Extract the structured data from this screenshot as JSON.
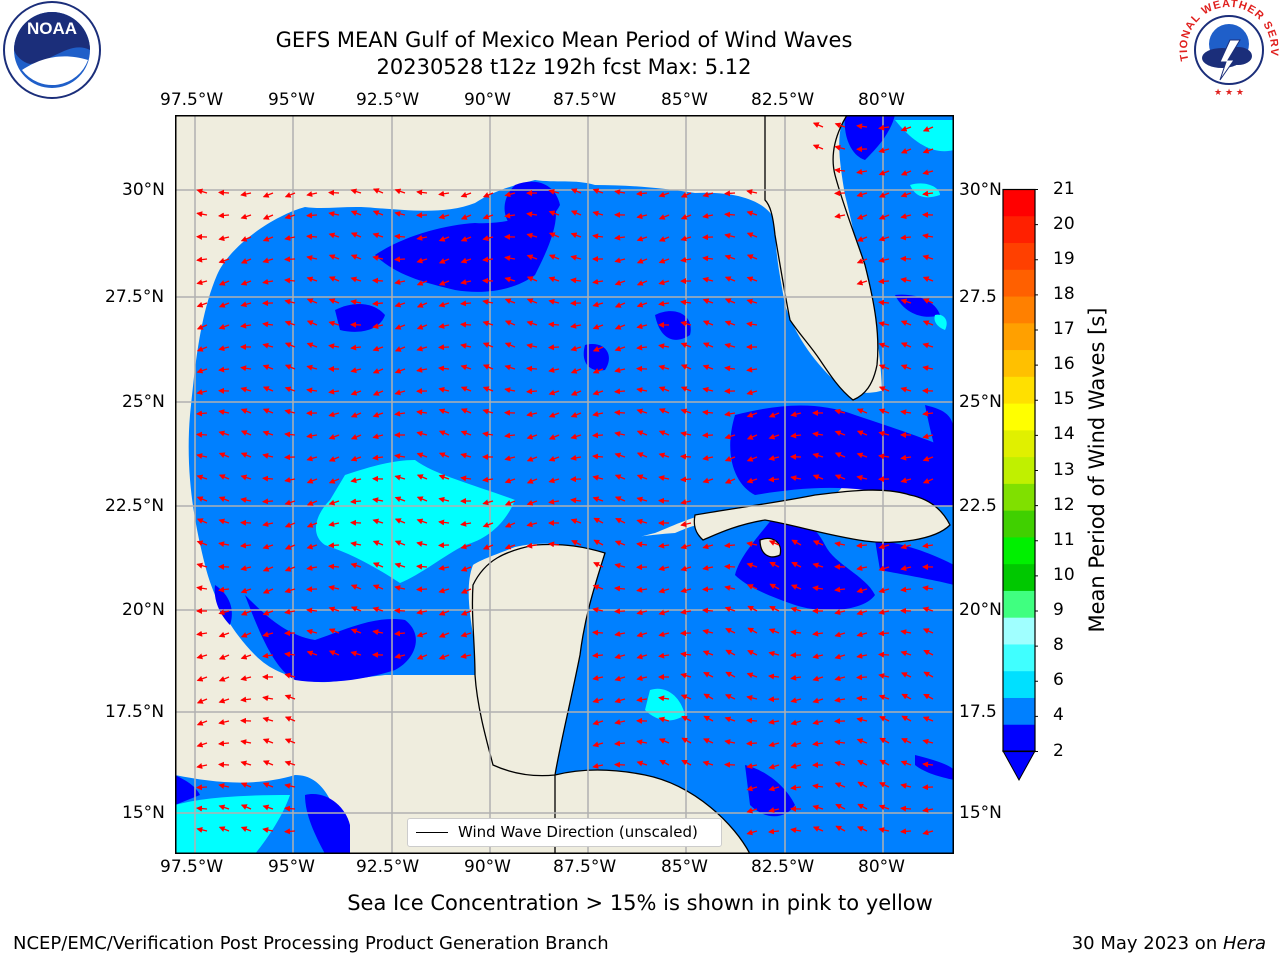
{
  "header": {
    "title_line1": "GEFS MEAN Gulf of Mexico Mean Period of Wind Waves",
    "title_line2": "20230528 t12z 192h fcst   Max: 5.12"
  },
  "logos": {
    "left": "NOAA",
    "right_text": "NATIONAL WEATHER SERVICE"
  },
  "map": {
    "lon_labels": [
      "97.5°W",
      "95°W",
      "92.5°W",
      "90°W",
      "87.5°W",
      "85°W",
      "82.5°W",
      "80°W"
    ],
    "lat_labels_left": [
      "30°N",
      "27.5°N",
      "25°N",
      "22.5°N",
      "20°N",
      "17.5°N",
      "15°N"
    ],
    "lat_labels_right": [
      "30°N",
      "27.5",
      "25°N",
      "22.5",
      "20°N",
      "17.5",
      "15°N"
    ],
    "legend": "Wind Wave Direction (unscaled)",
    "colors": {
      "land": "#efedde",
      "water_low": "#0000ff",
      "water_mid": "#0080ff",
      "water_high": "#00ffff",
      "arrow": "#ff0000"
    }
  },
  "colorbar": {
    "label": "Mean Period of Wind Waves [s]",
    "ticks": [
      "21",
      "20",
      "19",
      "18",
      "17",
      "16",
      "15",
      "14",
      "13",
      "12",
      "11",
      "10",
      "9",
      "8",
      "6",
      "4",
      "2"
    ],
    "colors": [
      "#ff0000",
      "#ff2000",
      "#ff4000",
      "#ff6000",
      "#ff8000",
      "#ffa000",
      "#ffc000",
      "#ffe000",
      "#ffff00",
      "#e0f000",
      "#c0f000",
      "#80e000",
      "#40d000",
      "#00f000",
      "#00c800",
      "#40ff80",
      "#a0ffff",
      "#40ffff",
      "#00e0ff",
      "#0080ff",
      "#0000ff"
    ]
  },
  "caption": "Sea Ice Concentration > 15% is shown in pink to yellow",
  "footer": {
    "left": "NCEP/EMC/Verification Post Processing Product Generation Branch",
    "right_date": "30 May 2023 on ",
    "right_host": "Hera"
  }
}
